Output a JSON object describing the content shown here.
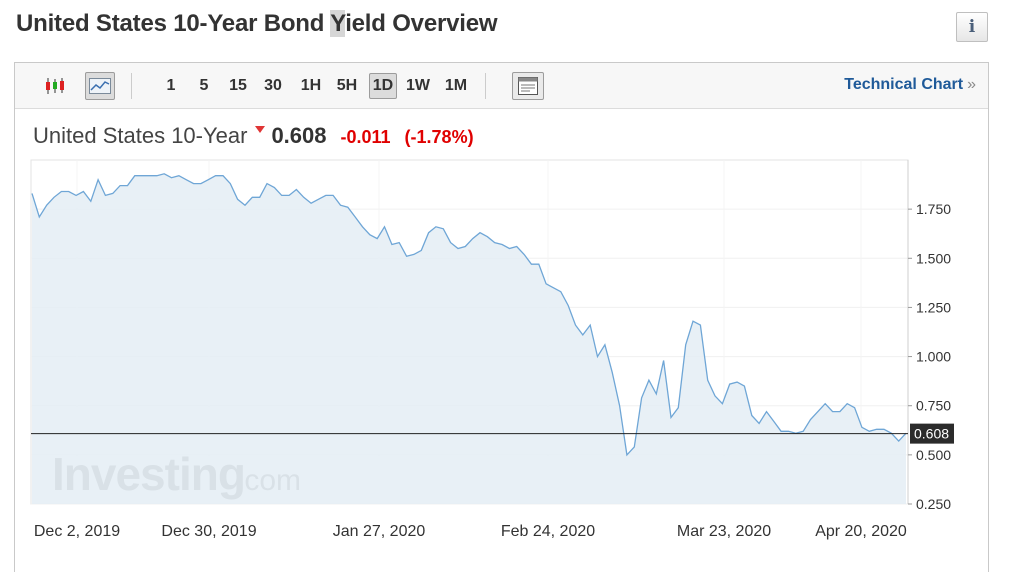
{
  "page": {
    "title_part1": "United States 10-Year Bond ",
    "title_highlight": "Y",
    "title_part2": "ield Overview",
    "info_icon_glyph": "i"
  },
  "toolbar": {
    "timeframes": [
      "1",
      "5",
      "15",
      "30",
      "1H",
      "5H",
      "1D",
      "1W",
      "1M"
    ],
    "active_timeframe": "1D",
    "technical_chart_label": "Technical Chart",
    "technical_chart_chevron": "»"
  },
  "quote": {
    "name": "United States 10-Year",
    "price": "0.608",
    "change": "-0.011",
    "change_pct": "(-1.78%)",
    "direction": "down",
    "down_color": "#e00000"
  },
  "watermark": {
    "brand": "Investing",
    "suffix": ".com"
  },
  "chart_data": {
    "type": "area",
    "ylim": [
      0.25,
      2.0
    ],
    "y_ticks": [
      "0.250",
      "0.500",
      "0.750",
      "1.000",
      "1.250",
      "1.500",
      "1.750"
    ],
    "x_tick_labels": [
      "Dec 2, 2019",
      "Dec 30, 2019",
      "Jan 27, 2020",
      "Feb 24, 2020",
      "Mar 23, 2020",
      "Apr 20, 2020"
    ],
    "current_value_label": "0.608",
    "current_value": 0.608,
    "line_color": "#6fa6d6",
    "fill_color": "#e4edf5",
    "series": [
      {
        "values": [
          1.83,
          1.71,
          1.77,
          1.81,
          1.84,
          1.84,
          1.82,
          1.84,
          1.79,
          1.9,
          1.82,
          1.83,
          1.87,
          1.87,
          1.92,
          1.92,
          1.92,
          1.92,
          1.93,
          1.91,
          1.92,
          1.9,
          1.88,
          1.88,
          1.9,
          1.92,
          1.92,
          1.88,
          1.8,
          1.77,
          1.81,
          1.81,
          1.88,
          1.86,
          1.82,
          1.82,
          1.85,
          1.81,
          1.78,
          1.8,
          1.82,
          1.82,
          1.77,
          1.76,
          1.71,
          1.66,
          1.62,
          1.6,
          1.66,
          1.57,
          1.58,
          1.51,
          1.52,
          1.54,
          1.63,
          1.66,
          1.65,
          1.58,
          1.55,
          1.56,
          1.6,
          1.63,
          1.61,
          1.58,
          1.57,
          1.55,
          1.56,
          1.52,
          1.47,
          1.47,
          1.37,
          1.35,
          1.33,
          1.26,
          1.16,
          1.11,
          1.16,
          1.0,
          1.06,
          0.92,
          0.75,
          0.5,
          0.54,
          0.79,
          0.88,
          0.81,
          0.98,
          0.69,
          0.74,
          1.06,
          1.18,
          1.16,
          0.88,
          0.8,
          0.76,
          0.86,
          0.87,
          0.85,
          0.7,
          0.66,
          0.72,
          0.67,
          0.62,
          0.62,
          0.61,
          0.62,
          0.68,
          0.72,
          0.76,
          0.72,
          0.72,
          0.76,
          0.74,
          0.64,
          0.62,
          0.63,
          0.63,
          0.61,
          0.57,
          0.61
        ]
      }
    ]
  }
}
